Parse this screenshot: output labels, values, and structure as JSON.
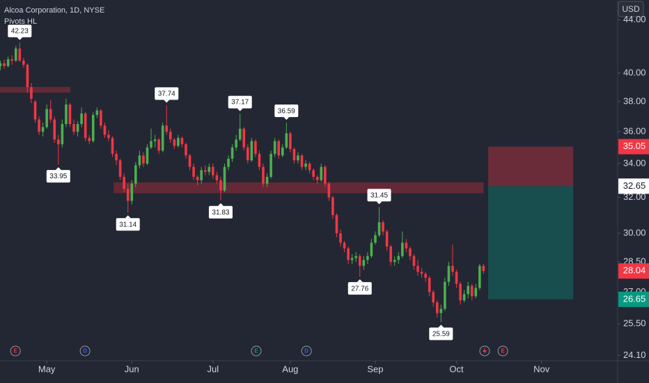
{
  "chart_data": {
    "type": "candlestick",
    "title": "Alcoa Corporation, 1D, NYSE",
    "subtitle": "Pivots HL",
    "currency": "USD",
    "log_scale": true,
    "up_color": "#4caf50",
    "down_color": "#f23645",
    "ylim": [
      23.87,
      45.6
    ],
    "yticks": [
      {
        "value": 44,
        "label": "44.00"
      },
      {
        "value": 40,
        "label": "40.00"
      },
      {
        "value": 38,
        "label": "38.00"
      },
      {
        "value": 36,
        "label": "36.00"
      },
      {
        "value": 34,
        "label": "34.00"
      },
      {
        "value": 32,
        "label": "32.00"
      },
      {
        "value": 30,
        "label": "30.00"
      },
      {
        "value": 28.5,
        "label": "28.50"
      },
      {
        "value": 27,
        "label": "27.00"
      },
      {
        "value": 25.5,
        "label": "25.50"
      },
      {
        "value": 24.1,
        "label": "24.10"
      }
    ],
    "xlim": [
      -0.1,
      159.7
    ],
    "xticks": [
      {
        "value": 12,
        "label": "May"
      },
      {
        "value": 34,
        "label": "Jun"
      },
      {
        "value": 55,
        "label": "Jul"
      },
      {
        "value": 75,
        "label": "Aug"
      },
      {
        "value": 97,
        "label": "Sep"
      },
      {
        "value": 118,
        "label": "Oct"
      },
      {
        "value": 140,
        "label": "Nov"
      }
    ],
    "ohlc": [
      [
        40.5,
        40.9,
        40.2,
        40.7
      ],
      [
        40.7,
        41.0,
        40.3,
        40.5
      ],
      [
        40.5,
        41.2,
        40.4,
        41.0
      ],
      [
        41.0,
        41.3,
        40.6,
        40.9
      ],
      [
        40.9,
        42.0,
        40.8,
        41.8
      ],
      [
        41.8,
        42.23,
        40.8,
        40.9
      ],
      [
        40.9,
        41.1,
        40.4,
        40.6
      ],
      [
        40.6,
        40.7,
        38.6,
        39.0
      ],
      [
        39.0,
        39.3,
        37.9,
        38.2
      ],
      [
        38.0,
        38.1,
        36.6,
        36.8
      ],
      [
        36.8,
        37.0,
        35.8,
        36.0
      ],
      [
        36.0,
        36.6,
        35.7,
        36.3
      ],
      [
        36.3,
        37.8,
        36.2,
        37.5
      ],
      [
        37.5,
        38.1,
        36.6,
        36.8
      ],
      [
        36.8,
        37.0,
        35.3,
        35.5
      ],
      [
        35.5,
        35.8,
        33.95,
        35.2
      ],
      [
        35.2,
        36.8,
        35.0,
        36.5
      ],
      [
        36.5,
        38.2,
        36.3,
        37.8
      ],
      [
        37.8,
        37.9,
        36.3,
        36.5
      ],
      [
        36.5,
        36.8,
        35.8,
        36.0
      ],
      [
        36.0,
        36.7,
        35.7,
        36.5
      ],
      [
        36.5,
        37.6,
        36.3,
        37.2
      ],
      [
        37.2,
        37.3,
        35.4,
        35.6
      ],
      [
        35.6,
        35.8,
        35.2,
        35.4
      ],
      [
        35.4,
        37.3,
        35.3,
        37.1
      ],
      [
        37.1,
        37.6,
        36.9,
        37.4
      ],
      [
        37.4,
        37.5,
        36.2,
        36.4
      ],
      [
        36.4,
        36.6,
        35.6,
        35.8
      ],
      [
        35.8,
        36.1,
        35.4,
        35.6
      ],
      [
        35.6,
        35.7,
        34.4,
        34.6
      ],
      [
        34.6,
        34.8,
        33.9,
        34.2
      ],
      [
        34.2,
        34.3,
        33.0,
        33.2
      ],
      [
        33.2,
        33.4,
        32.3,
        32.5
      ],
      [
        32.5,
        32.8,
        31.14,
        31.8
      ],
      [
        31.8,
        33.0,
        31.6,
        32.8
      ],
      [
        32.8,
        34.1,
        32.6,
        33.9
      ],
      [
        33.9,
        34.8,
        33.7,
        34.5
      ],
      [
        34.5,
        34.7,
        33.8,
        34.0
      ],
      [
        34.0,
        35.2,
        33.9,
        35.0
      ],
      [
        35.0,
        36.2,
        34.9,
        35.4
      ],
      [
        35.4,
        35.8,
        35.0,
        35.5
      ],
      [
        35.5,
        35.6,
        34.6,
        34.8
      ],
      [
        34.8,
        36.6,
        34.7,
        36.4
      ],
      [
        36.4,
        37.74,
        35.8,
        36.0
      ],
      [
        36.0,
        36.2,
        35.3,
        35.5
      ],
      [
        35.5,
        35.6,
        34.9,
        35.1
      ],
      [
        35.1,
        35.8,
        35.0,
        35.6
      ],
      [
        35.6,
        35.7,
        35.0,
        35.2
      ],
      [
        35.2,
        35.3,
        34.3,
        34.5
      ],
      [
        34.5,
        34.6,
        33.6,
        33.8
      ],
      [
        33.8,
        34.0,
        33.0,
        33.2
      ],
      [
        33.2,
        33.3,
        32.7,
        33.0
      ],
      [
        33.0,
        33.8,
        32.8,
        33.6
      ],
      [
        33.6,
        33.9,
        33.3,
        33.5
      ],
      [
        33.5,
        34.0,
        33.3,
        33.8
      ],
      [
        33.8,
        34.0,
        33.1,
        33.3
      ],
      [
        33.3,
        33.5,
        32.8,
        33.0
      ],
      [
        33.0,
        33.2,
        31.83,
        32.4
      ],
      [
        32.4,
        34.0,
        32.3,
        33.8
      ],
      [
        33.8,
        34.5,
        33.6,
        34.3
      ],
      [
        34.3,
        35.2,
        34.1,
        35.0
      ],
      [
        35.0,
        35.8,
        34.8,
        35.5
      ],
      [
        35.5,
        37.17,
        35.4,
        36.2
      ],
      [
        36.2,
        36.3,
        34.8,
        35.0
      ],
      [
        35.0,
        35.2,
        34.0,
        34.2
      ],
      [
        34.2,
        35.6,
        34.1,
        35.4
      ],
      [
        35.4,
        35.5,
        34.4,
        34.6
      ],
      [
        34.6,
        34.8,
        33.6,
        33.8
      ],
      [
        33.8,
        34.0,
        32.6,
        32.8
      ],
      [
        32.8,
        33.4,
        32.6,
        33.2
      ],
      [
        33.2,
        34.8,
        33.1,
        34.6
      ],
      [
        34.6,
        35.6,
        34.4,
        35.4
      ],
      [
        35.4,
        35.5,
        34.3,
        34.5
      ],
      [
        34.5,
        35.2,
        34.4,
        35.0
      ],
      [
        35.0,
        36.59,
        34.9,
        35.9
      ],
      [
        35.9,
        36.0,
        34.7,
        34.9
      ],
      [
        34.9,
        35.0,
        34.0,
        34.2
      ],
      [
        34.2,
        34.7,
        34.0,
        34.5
      ],
      [
        34.5,
        34.6,
        33.6,
        33.8
      ],
      [
        33.8,
        34.2,
        33.6,
        34.0
      ],
      [
        34.0,
        34.1,
        33.4,
        33.6
      ],
      [
        33.6,
        33.7,
        33.0,
        33.2
      ],
      [
        33.2,
        33.3,
        32.8,
        33.0
      ],
      [
        33.0,
        34.0,
        32.9,
        33.8
      ],
      [
        33.8,
        33.9,
        32.6,
        32.8
      ],
      [
        32.8,
        32.9,
        31.8,
        32.0
      ],
      [
        32.0,
        32.1,
        30.8,
        31.0
      ],
      [
        31.0,
        31.1,
        29.8,
        30.0
      ],
      [
        30.0,
        30.2,
        29.3,
        29.5
      ],
      [
        29.5,
        29.6,
        29.0,
        29.2
      ],
      [
        29.2,
        29.3,
        28.4,
        28.6
      ],
      [
        28.6,
        28.9,
        28.4,
        28.7
      ],
      [
        28.7,
        29.0,
        28.5,
        28.8
      ],
      [
        28.8,
        28.9,
        27.76,
        28.3
      ],
      [
        28.3,
        28.8,
        28.1,
        28.6
      ],
      [
        28.6,
        29.0,
        28.4,
        28.8
      ],
      [
        28.8,
        29.7,
        28.7,
        29.5
      ],
      [
        29.5,
        30.1,
        29.4,
        29.9
      ],
      [
        29.9,
        31.45,
        29.8,
        30.6
      ],
      [
        30.6,
        30.7,
        29.9,
        30.1
      ],
      [
        30.1,
        30.2,
        29.1,
        29.3
      ],
      [
        29.3,
        29.4,
        28.3,
        28.5
      ],
      [
        28.5,
        28.8,
        28.3,
        28.6
      ],
      [
        28.6,
        29.0,
        28.4,
        28.8
      ],
      [
        28.8,
        30.1,
        28.7,
        29.5
      ],
      [
        29.5,
        29.7,
        29.0,
        29.2
      ],
      [
        29.2,
        29.3,
        28.6,
        28.8
      ],
      [
        28.8,
        28.9,
        28.1,
        28.3
      ],
      [
        28.3,
        28.6,
        27.8,
        28.0
      ],
      [
        28.0,
        28.2,
        27.7,
        27.9
      ],
      [
        27.9,
        28.0,
        27.5,
        27.7
      ],
      [
        27.7,
        27.8,
        26.8,
        27.0
      ],
      [
        27.0,
        27.1,
        26.3,
        26.5
      ],
      [
        26.5,
        26.6,
        25.8,
        26.0
      ],
      [
        26.0,
        26.4,
        25.59,
        26.2
      ],
      [
        26.2,
        27.7,
        26.1,
        27.5
      ],
      [
        27.5,
        28.5,
        27.3,
        28.3
      ],
      [
        28.3,
        29.4,
        27.8,
        28.0
      ],
      [
        28.0,
        28.1,
        27.2,
        27.4
      ],
      [
        27.4,
        27.5,
        26.4,
        26.6
      ],
      [
        26.6,
        27.1,
        26.5,
        26.9
      ],
      [
        26.9,
        27.5,
        26.7,
        27.3
      ],
      [
        27.3,
        27.4,
        26.6,
        26.8
      ],
      [
        26.8,
        27.4,
        26.7,
        27.2
      ],
      [
        27.2,
        28.4,
        27.1,
        28.3
      ],
      [
        28.3,
        28.4,
        27.9,
        28.04
      ]
    ],
    "pivot_highs": [
      {
        "index": 5,
        "value": 42.23
      },
      {
        "index": 43,
        "value": 37.74
      },
      {
        "index": 62,
        "value": 37.17
      },
      {
        "index": 74,
        "value": 36.59
      },
      {
        "index": 98,
        "value": 31.45
      }
    ],
    "pivot_lows": [
      {
        "index": 15,
        "value": 33.95
      },
      {
        "index": 33,
        "value": 31.14
      },
      {
        "index": 57,
        "value": 31.83
      },
      {
        "index": 93,
        "value": 27.76
      },
      {
        "index": 114,
        "value": 25.59
      }
    ],
    "zones": [
      {
        "from": 38.62,
        "to": 39.01,
        "x_start": -0.1,
        "x_end": 18.1
      },
      {
        "from": 32.24,
        "to": 32.87,
        "x_start": 29.3,
        "x_end": 125
      }
    ],
    "zone_color": "#6e2a38",
    "position": {
      "stop": 35.05,
      "entry": 32.65,
      "target": 26.65,
      "x_start": 126.2,
      "x_end": 148.2,
      "loss_color": "#f23645",
      "profit_color": "#089981"
    },
    "last_price": 28.04,
    "events": [
      {
        "x": 3.9,
        "label": "E",
        "color": "#f23645"
      },
      {
        "x": 21.9,
        "label": "D",
        "color": "#2962ff"
      },
      {
        "x": 66.2,
        "label": "E",
        "color": "#089981"
      },
      {
        "x": 79.2,
        "label": "D",
        "color": "#2962ff"
      },
      {
        "x": 130,
        "label": "E",
        "color": "#f23645"
      }
    ]
  }
}
